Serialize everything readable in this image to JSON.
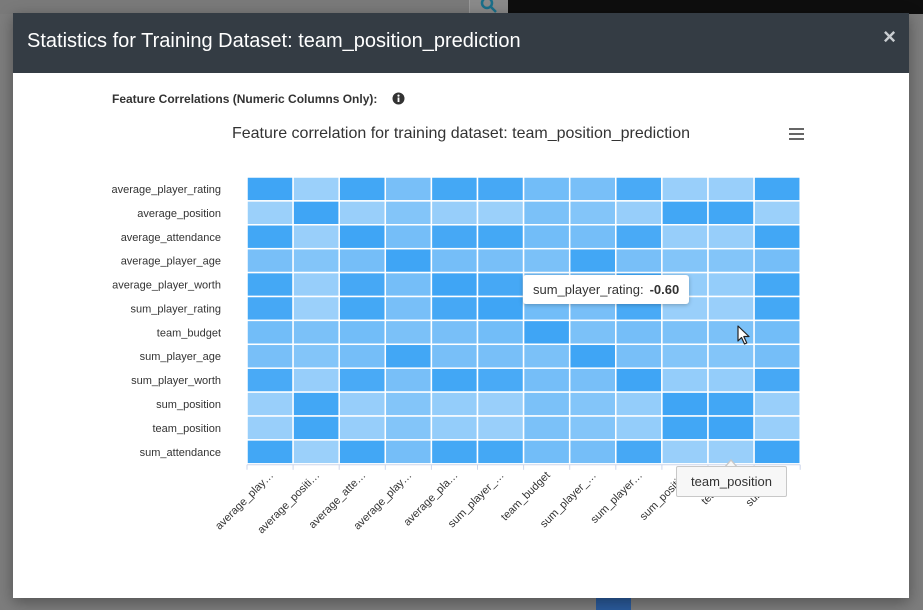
{
  "modal": {
    "title": "Statistics for Training Dataset: team_position_prediction",
    "close_glyph": "×"
  },
  "section": {
    "label": "Feature Correlations (Numeric Columns Only):"
  },
  "tooltip": {
    "label": "sum_player_rating:",
    "value": "-0.60"
  },
  "axis_popup": {
    "label": "team_position"
  },
  "chart_data": {
    "type": "heatmap",
    "title": "Feature correlation for training dataset: team_position_prediction",
    "x_categories": [
      "average_player_rating",
      "average_position",
      "average_attendance",
      "average_player_age",
      "average_player_worth",
      "sum_player_rating",
      "team_budget",
      "sum_player_age",
      "sum_player_worth",
      "sum_position",
      "team_position",
      "sum_attendance"
    ],
    "x_tick_labels": [
      "average_play…",
      "average_positi…",
      "average_atte…",
      "average_play…",
      "average_pla…",
      "sum_player_…",
      "team_budget",
      "sum_player_…",
      "sum_player…",
      "sum_positi…",
      "team_…",
      "sum_a…"
    ],
    "y_categories": [
      "average_player_rating",
      "average_position",
      "average_attendance",
      "average_player_age",
      "average_player_worth",
      "sum_player_rating",
      "team_budget",
      "sum_player_age",
      "sum_player_worth",
      "sum_position",
      "team_position",
      "sum_attendance"
    ],
    "values": [
      [
        1.0,
        -0.6,
        0.95,
        0.1,
        0.92,
        0.9,
        0.2,
        0.1,
        0.85,
        -0.55,
        -0.55,
        0.95
      ],
      [
        -0.6,
        1.0,
        -0.55,
        -0.1,
        -0.5,
        -0.6,
        0.05,
        -0.1,
        -0.5,
        0.95,
        0.95,
        -0.6
      ],
      [
        0.95,
        -0.55,
        1.0,
        0.15,
        0.9,
        0.92,
        0.2,
        0.15,
        0.85,
        -0.5,
        -0.5,
        0.95
      ],
      [
        0.1,
        -0.1,
        0.15,
        1.0,
        0.15,
        0.1,
        0.05,
        0.95,
        0.1,
        -0.1,
        -0.1,
        0.15
      ],
      [
        0.92,
        -0.5,
        0.9,
        0.15,
        1.0,
        0.9,
        0.1,
        0.1,
        0.95,
        -0.45,
        -0.45,
        0.92
      ],
      [
        0.9,
        -0.6,
        0.92,
        0.1,
        0.9,
        1.0,
        0.2,
        0.1,
        0.85,
        -0.55,
        -0.55,
        0.92
      ],
      [
        0.2,
        0.05,
        0.2,
        0.05,
        0.1,
        0.2,
        1.0,
        0.05,
        0.15,
        0.05,
        0.05,
        0.2
      ],
      [
        0.1,
        -0.1,
        0.15,
        0.95,
        0.1,
        0.1,
        0.05,
        1.0,
        0.1,
        -0.1,
        -0.1,
        0.15
      ],
      [
        0.85,
        -0.5,
        0.85,
        0.1,
        0.95,
        0.85,
        0.15,
        0.1,
        1.0,
        -0.45,
        -0.45,
        0.9
      ],
      [
        -0.55,
        0.95,
        -0.5,
        -0.1,
        -0.45,
        -0.55,
        0.05,
        -0.1,
        -0.45,
        1.0,
        0.95,
        -0.55
      ],
      [
        -0.55,
        0.95,
        -0.5,
        -0.1,
        -0.45,
        -0.55,
        0.05,
        -0.1,
        -0.45,
        0.95,
        1.0,
        -0.55
      ],
      [
        0.95,
        -0.6,
        0.95,
        0.15,
        0.92,
        0.92,
        0.2,
        0.15,
        0.9,
        -0.55,
        -0.55,
        1.0
      ]
    ],
    "color_min": "#a8d6fb",
    "color_max": "#3fa5f5",
    "cell_border_color": "#ffffff"
  }
}
